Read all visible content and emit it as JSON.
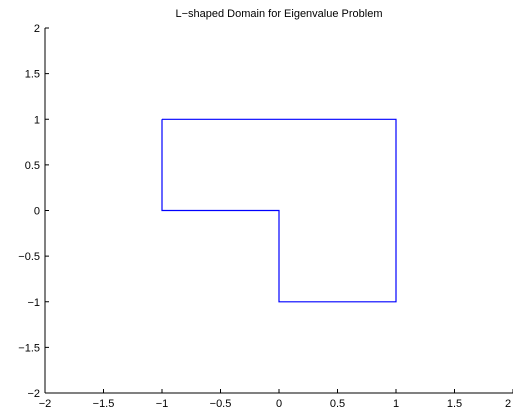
{
  "chart_data": {
    "type": "line",
    "title": "L−shaped Domain for Eigenvalue Problem",
    "xlabel": "",
    "ylabel": "",
    "xlim": [
      -2,
      2
    ],
    "ylim": [
      -2,
      2
    ],
    "grid": false,
    "x_ticks": [
      -2,
      -1.5,
      -1,
      -0.5,
      0,
      0.5,
      1,
      1.5,
      2
    ],
    "y_ticks": [
      -2,
      -1.5,
      -1,
      -0.5,
      0,
      0.5,
      1,
      1.5,
      2
    ],
    "x_tick_labels": [
      "−2",
      "−1.5",
      "−1",
      "−0.5",
      "0",
      "0.5",
      "1",
      "1.5",
      "2"
    ],
    "y_tick_labels": [
      "−2",
      "−1.5",
      "−1",
      "−0.5",
      "0",
      "0.5",
      "1",
      "1.5",
      "2"
    ],
    "series": [
      {
        "color": "#0000ff",
        "x": [
          -1,
          1,
          1,
          0,
          0,
          -1,
          -1
        ],
        "y": [
          1,
          1,
          -1,
          -1,
          0,
          0,
          1
        ]
      }
    ]
  }
}
